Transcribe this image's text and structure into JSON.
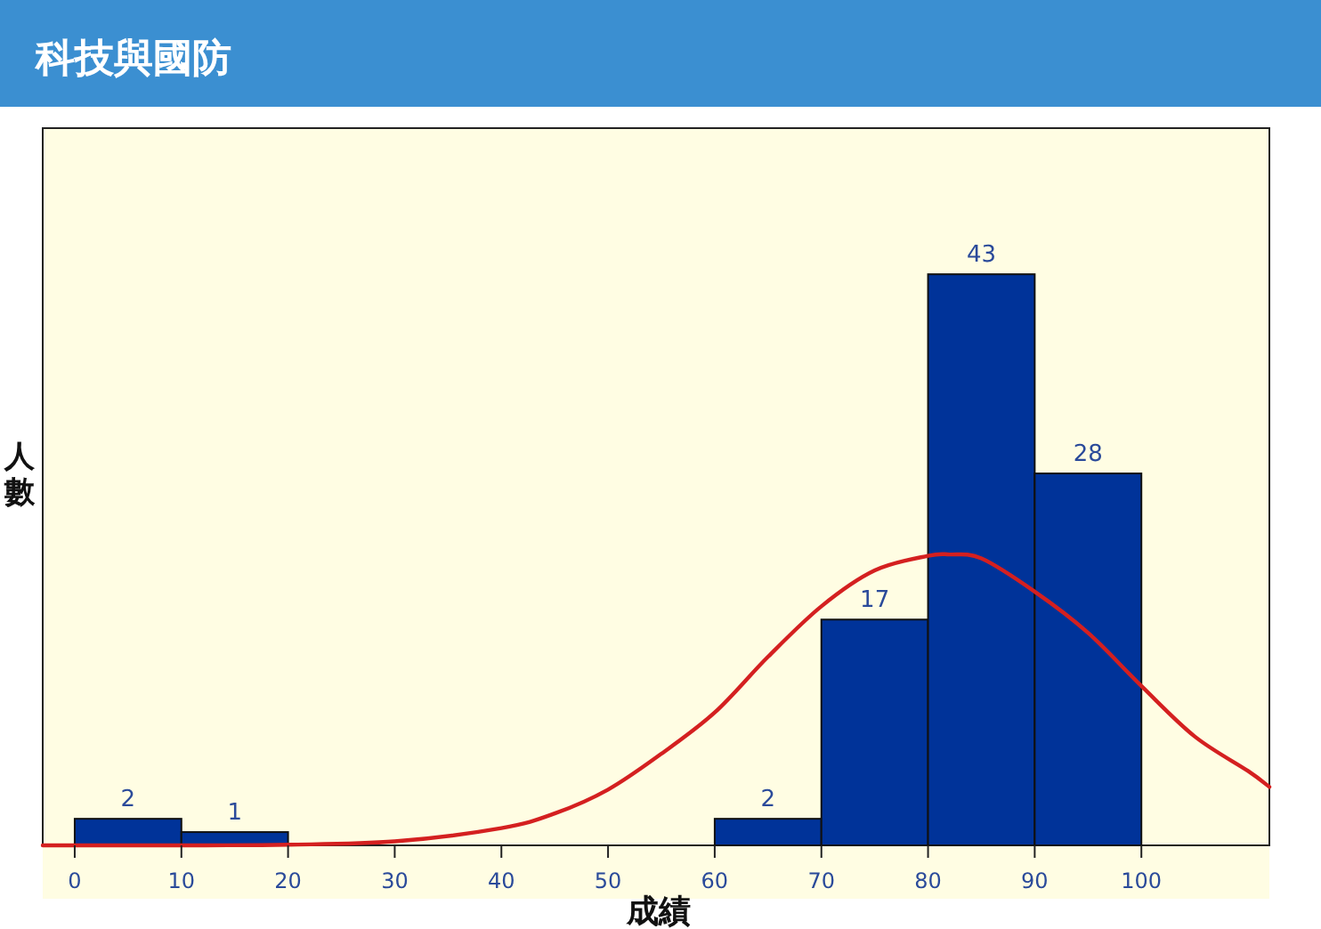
{
  "chart_data": {
    "type": "histogram",
    "title": "科技與國防",
    "xlabel": "成績",
    "ylabel": "人數",
    "bins": [
      0,
      10,
      20,
      30,
      40,
      50,
      60,
      70,
      80,
      90,
      100
    ],
    "values": [
      2,
      1,
      0,
      0,
      0,
      0,
      2,
      17,
      43,
      28
    ],
    "color": "#003399",
    "value_labels": [
      "2",
      "1",
      null,
      null,
      null,
      null,
      "2",
      "17",
      "43",
      "28"
    ],
    "xlim": [
      -3,
      112
    ],
    "xticks": [
      0,
      10,
      20,
      30,
      40,
      50,
      60,
      70,
      80,
      90,
      100
    ],
    "ylim": [
      0,
      54
    ],
    "tick_labels": "x",
    "series": [
      {
        "type": "line",
        "color": "#d42020",
        "x": [
          -3,
          0,
          10,
          20,
          30,
          40,
          45,
          50,
          55,
          60,
          65,
          70,
          75,
          80,
          82,
          85,
          90,
          95,
          100,
          105,
          110,
          112
        ],
        "values": [
          0,
          0,
          0,
          0.05,
          0.3,
          1.3,
          2.4,
          4.2,
          6.9,
          10.0,
          14.2,
          18.0,
          20.7,
          21.8,
          21.9,
          21.6,
          19.1,
          16.0,
          12.0,
          8.2,
          5.6,
          4.4
        ]
      }
    ]
  }
}
